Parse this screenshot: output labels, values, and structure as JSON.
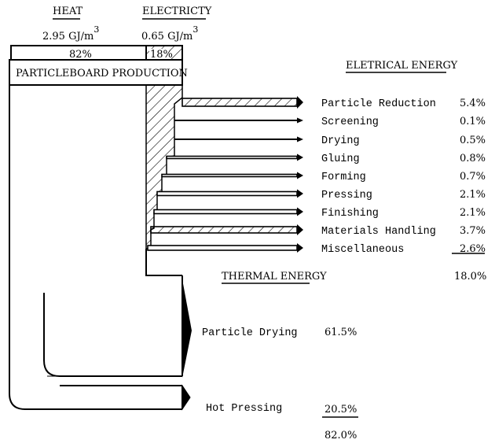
{
  "inputs": {
    "heat": {
      "label": "HEAT",
      "value": "2.95 GJ/m",
      "sup": "3",
      "share": "82%"
    },
    "electricity": {
      "label": "ELECTRICTY",
      "value": "0.65 GJ/m",
      "sup": "3",
      "share": "18%"
    }
  },
  "process_label": "PARTICLEBOARD PRODUCTION",
  "electrical": {
    "heading": "ELETRICAL ENERGY",
    "items": [
      {
        "label": "Particle Reduction",
        "value": "5.4%"
      },
      {
        "label": "Screening",
        "value": "0.1%"
      },
      {
        "label": "Drying",
        "value": "0.5%"
      },
      {
        "label": "Gluing",
        "value": "0.8%"
      },
      {
        "label": "Forming",
        "value": "0.7%"
      },
      {
        "label": "Pressing",
        "value": "2.1%"
      },
      {
        "label": "Finishing",
        "value": "2.1%"
      },
      {
        "label": "Materials Handling",
        "value": "3.7%"
      },
      {
        "label": "Miscellaneous",
        "value": "2.6%"
      }
    ],
    "total": "18.0%"
  },
  "thermal": {
    "heading": "THERMAL ENERGY",
    "items": [
      {
        "label": "Particle Drying",
        "value": "61.5%"
      },
      {
        "label": "Hot Pressing",
        "value": "20.5%"
      }
    ],
    "total": "82.0%"
  }
}
